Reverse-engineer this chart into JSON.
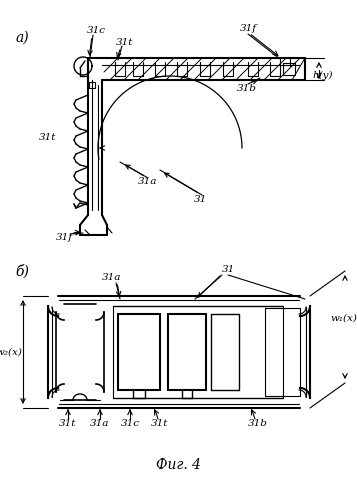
{
  "bg_color": "#ffffff",
  "line_color": "#000000",
  "fig_width": 3.57,
  "fig_height": 4.99,
  "label_a": "а)",
  "label_b": "б)",
  "caption": "Фиг. 4",
  "lbl_31c": "31с",
  "lbl_31t": "31t",
  "lbl_31f_top": "31f",
  "lbl_31b": "31b",
  "lbl_hy": "h(y)",
  "lbl_31t_left": "31t",
  "lbl_31a": "31а",
  "lbl_31": "31",
  "lbl_31f_bot": "31f",
  "lbl_31_b": "31",
  "lbl_31a_b": "31а",
  "lbl_w1x": "w₁(x)",
  "lbl_w2x": "w₂(x)",
  "lbl_31t_bl": "31t",
  "lbl_31a_bl": "31а",
  "lbl_31c_bl": "31с",
  "lbl_31t_bm": "31t",
  "lbl_31b_br": "31b"
}
